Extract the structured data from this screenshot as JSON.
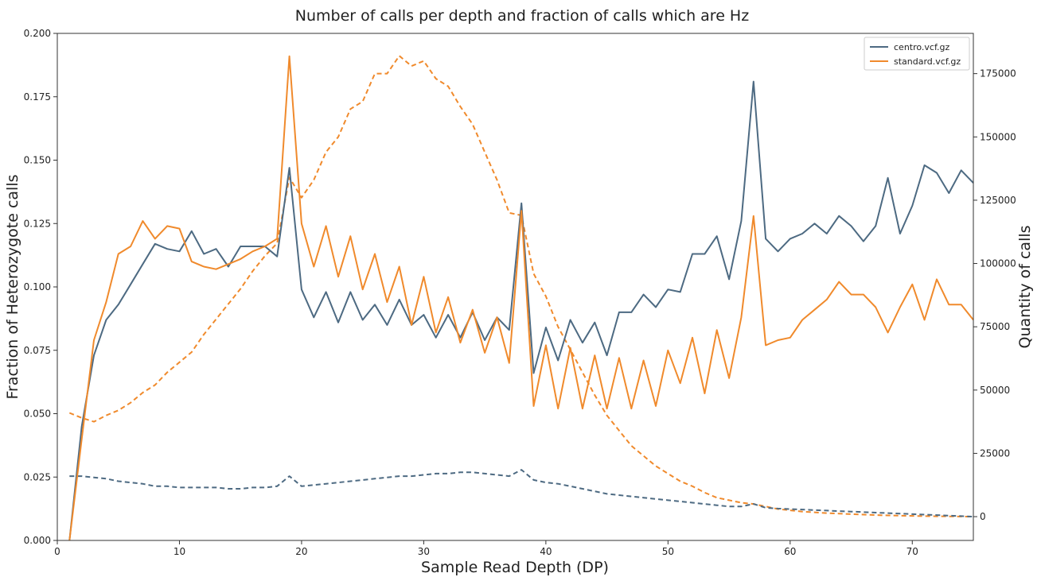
{
  "chart_data": {
    "type": "line",
    "title": "Number of calls per depth and fraction of calls which are Hz",
    "xlabel": "Sample Read Depth (DP)",
    "ylabel_left": "Fraction of Heterozygote calls",
    "ylabel_right": "Quantity of calls",
    "xlim": [
      0,
      75
    ],
    "ylim_left": [
      0,
      0.2
    ],
    "ylim_right": [
      -9400,
      190900
    ],
    "x_ticks": [
      0,
      10,
      20,
      30,
      40,
      50,
      60,
      70
    ],
    "x_tick_labels": [
      "0",
      "10",
      "20",
      "30",
      "40",
      "50",
      "60",
      "70"
    ],
    "y_left_ticks": [
      0,
      0.025,
      0.05,
      0.075,
      0.1,
      0.125,
      0.15,
      0.175,
      0.2
    ],
    "y_left_tick_labels": [
      "0.000",
      "0.025",
      "0.050",
      "0.075",
      "0.100",
      "0.125",
      "0.150",
      "0.175",
      "0.200"
    ],
    "y_right_ticks": [
      0,
      25000,
      50000,
      75000,
      100000,
      125000,
      150000,
      175000
    ],
    "y_right_tick_labels": [
      "0",
      "25000",
      "50000",
      "75000",
      "100000",
      "125000",
      "150000",
      "175000"
    ],
    "legend_position": "top-right",
    "grid": false,
    "series": [
      {
        "name": "centro.vcf.gz",
        "color": "#4d6a82",
        "axis": "left",
        "style": "solid",
        "x": [
          1,
          2,
          3,
          4,
          5,
          6,
          7,
          8,
          9,
          10,
          11,
          12,
          13,
          14,
          15,
          16,
          17,
          18,
          19,
          20,
          21,
          22,
          23,
          24,
          25,
          26,
          27,
          28,
          29,
          30,
          31,
          32,
          33,
          34,
          35,
          36,
          37,
          38,
          39,
          40,
          41,
          42,
          43,
          44,
          45,
          46,
          47,
          48,
          49,
          50,
          51,
          52,
          53,
          54,
          55,
          56,
          57,
          58,
          59,
          60,
          61,
          62,
          63,
          64,
          65,
          66,
          67,
          68,
          69,
          70,
          71,
          72,
          73,
          74,
          75
        ],
        "y": [
          0.0,
          0.045,
          0.073,
          0.087,
          0.093,
          0.101,
          0.109,
          0.117,
          0.115,
          0.114,
          0.122,
          0.113,
          0.115,
          0.108,
          0.116,
          0.116,
          0.116,
          0.112,
          0.147,
          0.099,
          0.088,
          0.098,
          0.086,
          0.098,
          0.087,
          0.093,
          0.085,
          0.095,
          0.085,
          0.089,
          0.08,
          0.089,
          0.08,
          0.09,
          0.079,
          0.088,
          0.083,
          0.133,
          0.066,
          0.084,
          0.071,
          0.087,
          0.078,
          0.086,
          0.073,
          0.09,
          0.09,
          0.097,
          0.092,
          0.099,
          0.098,
          0.113,
          0.113,
          0.12,
          0.103,
          0.126,
          0.181,
          0.119,
          0.114,
          0.119,
          0.121,
          0.125,
          0.121,
          0.128,
          0.124,
          0.118,
          0.124,
          0.143,
          0.121,
          0.132,
          0.148,
          0.145,
          0.137,
          0.146,
          0.141
        ]
      },
      {
        "name": "standard.vcf.gz",
        "color": "#f08a2c",
        "axis": "left",
        "style": "solid",
        "x": [
          1,
          2,
          3,
          4,
          5,
          6,
          7,
          8,
          9,
          10,
          11,
          12,
          13,
          14,
          15,
          16,
          17,
          18,
          19,
          20,
          21,
          22,
          23,
          24,
          25,
          26,
          27,
          28,
          29,
          30,
          31,
          32,
          33,
          34,
          35,
          36,
          37,
          38,
          39,
          40,
          41,
          42,
          43,
          44,
          45,
          46,
          47,
          48,
          49,
          50,
          51,
          52,
          53,
          54,
          55,
          56,
          57,
          58,
          59,
          60,
          61,
          62,
          63,
          64,
          65,
          66,
          67,
          68,
          69,
          70,
          71,
          72,
          73,
          74,
          75
        ],
        "y": [
          0.0,
          0.04,
          0.079,
          0.094,
          0.113,
          0.116,
          0.126,
          0.119,
          0.124,
          0.123,
          0.11,
          0.108,
          0.107,
          0.109,
          0.111,
          0.114,
          0.116,
          0.119,
          0.191,
          0.125,
          0.108,
          0.124,
          0.104,
          0.12,
          0.099,
          0.113,
          0.094,
          0.108,
          0.085,
          0.104,
          0.082,
          0.096,
          0.078,
          0.091,
          0.074,
          0.088,
          0.07,
          0.13,
          0.053,
          0.077,
          0.052,
          0.076,
          0.052,
          0.073,
          0.052,
          0.072,
          0.052,
          0.071,
          0.053,
          0.075,
          0.062,
          0.08,
          0.058,
          0.083,
          0.064,
          0.088,
          0.128,
          0.077,
          0.079,
          0.08,
          0.087,
          0.091,
          0.095,
          0.102,
          0.097,
          0.097,
          0.092,
          0.082,
          0.092,
          0.101,
          0.087,
          0.103,
          0.093,
          0.093,
          0.087
        ]
      },
      {
        "name": "centro.vcf.gz (quantity)",
        "color": "#4d6a82",
        "axis": "right",
        "style": "dashed",
        "x": [
          1,
          2,
          3,
          4,
          5,
          6,
          7,
          8,
          9,
          10,
          11,
          12,
          13,
          14,
          15,
          16,
          17,
          18,
          19,
          20,
          21,
          22,
          23,
          24,
          25,
          26,
          27,
          28,
          29,
          30,
          31,
          32,
          33,
          34,
          35,
          36,
          37,
          38,
          39,
          40,
          41,
          42,
          43,
          44,
          45,
          46,
          47,
          48,
          49,
          50,
          51,
          52,
          53,
          54,
          55,
          56,
          57,
          58,
          59,
          60,
          61,
          62,
          63,
          64,
          65,
          66,
          67,
          68,
          69,
          70,
          71,
          72,
          73,
          74,
          75
        ],
        "y": [
          16000,
          16000,
          15500,
          15000,
          14000,
          13500,
          13000,
          12000,
          12000,
          11500,
          11500,
          11500,
          11500,
          11000,
          11000,
          11500,
          11500,
          12000,
          16000,
          12000,
          12500,
          13000,
          13500,
          14000,
          14500,
          15000,
          15500,
          16000,
          16000,
          16500,
          17000,
          17000,
          17500,
          17500,
          17000,
          16500,
          16000,
          18500,
          14500,
          13500,
          13000,
          12000,
          11000,
          10000,
          9000,
          8500,
          8000,
          7500,
          7000,
          6500,
          6000,
          5500,
          5000,
          4500,
          4000,
          4000,
          5000,
          3500,
          3200,
          3000,
          2800,
          2600,
          2400,
          2200,
          2000,
          1800,
          1600,
          1400,
          1200,
          1000,
          800,
          600,
          400,
          200,
          0
        ]
      },
      {
        "name": "standard.vcf.gz (quantity)",
        "color": "#f08a2c",
        "axis": "right",
        "style": "dashed",
        "x": [
          1,
          2,
          3,
          4,
          5,
          6,
          7,
          8,
          9,
          10,
          11,
          12,
          13,
          14,
          15,
          16,
          17,
          18,
          19,
          20,
          21,
          22,
          23,
          24,
          25,
          26,
          27,
          28,
          29,
          30,
          31,
          32,
          33,
          34,
          35,
          36,
          37,
          38,
          39,
          40,
          41,
          42,
          43,
          44,
          45,
          46,
          47,
          48,
          49,
          50,
          51,
          52,
          53,
          54,
          55,
          56,
          57,
          58,
          59,
          60,
          61,
          62,
          63,
          64,
          65,
          66,
          67,
          68,
          69,
          70,
          71,
          72,
          73,
          74,
          75
        ],
        "y": [
          41000,
          39000,
          37500,
          40000,
          42000,
          45000,
          49000,
          52000,
          57000,
          61000,
          65000,
          72000,
          78000,
          84000,
          90000,
          97000,
          103000,
          108000,
          134000,
          126000,
          133000,
          144000,
          150000,
          161000,
          164000,
          175000,
          175000,
          182000,
          178000,
          180000,
          173000,
          170000,
          162000,
          155000,
          144000,
          133000,
          120000,
          119000,
          96000,
          87000,
          75000,
          66000,
          57000,
          48000,
          40000,
          34000,
          28000,
          24000,
          20000,
          17000,
          14000,
          12000,
          9500,
          7500,
          6500,
          5500,
          5000,
          4000,
          3000,
          2500,
          2000,
          1700,
          1400,
          1200,
          1000,
          800,
          600,
          500,
          400,
          300,
          200,
          150,
          100,
          50,
          0
        ]
      }
    ]
  }
}
